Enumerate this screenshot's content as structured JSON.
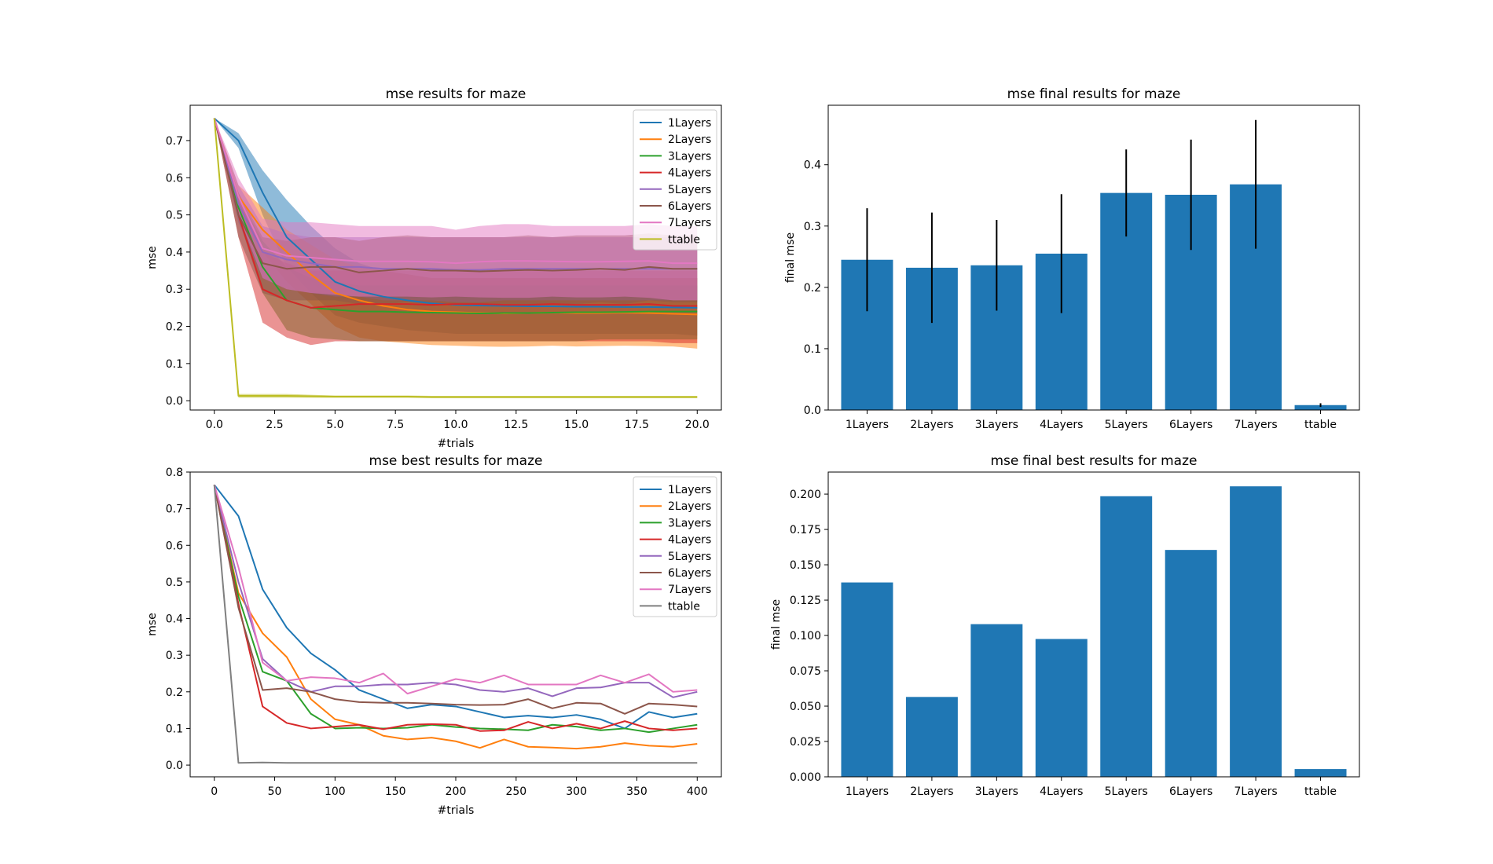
{
  "colors": {
    "1Layers": "#1f77b4",
    "2Layers": "#ff7f0e",
    "3Layers": "#2ca02c",
    "4Layers": "#d62728",
    "5Layers": "#9467bd",
    "6Layers": "#8c564b",
    "7Layers": "#e377c2",
    "ttable_top": "#bcbd22",
    "ttable_bottom": "#7f7f7f",
    "bar": "#1f77b4",
    "errorbar": "#000000"
  },
  "chart_data": [
    {
      "id": "top_left",
      "type": "line",
      "title": "mse results for maze",
      "xlabel": "#trials",
      "ylabel": "mse",
      "xlim": [
        -1.0,
        21.0
      ],
      "ylim": [
        -0.025,
        0.795
      ],
      "xticks": [
        0.0,
        2.5,
        5.0,
        7.5,
        10.0,
        12.5,
        15.0,
        17.5,
        20.0
      ],
      "xtick_labels": [
        "0.0",
        "2.5",
        "5.0",
        "7.5",
        "10.0",
        "12.5",
        "15.0",
        "17.5",
        "20.0"
      ],
      "yticks": [
        0.0,
        0.1,
        0.2,
        0.3,
        0.4,
        0.5,
        0.6,
        0.7
      ],
      "ytick_labels": [
        "0.0",
        "0.1",
        "0.2",
        "0.3",
        "0.4",
        "0.5",
        "0.6",
        "0.7"
      ],
      "legend_position": "top-right",
      "band_opacity": 0.5,
      "x": [
        0,
        1,
        2,
        3,
        4,
        5,
        6,
        7,
        8,
        9,
        10,
        11,
        12,
        13,
        14,
        15,
        16,
        17,
        18,
        19,
        20
      ],
      "series": [
        {
          "name": "1Layers",
          "color_key": "1Layers",
          "values": [
            0.76,
            0.7,
            0.56,
            0.44,
            0.38,
            0.32,
            0.295,
            0.28,
            0.27,
            0.262,
            0.258,
            0.256,
            0.255,
            0.254,
            0.254,
            0.253,
            0.253,
            0.252,
            0.252,
            0.251,
            0.25
          ],
          "upper": [
            0.76,
            0.72,
            0.62,
            0.54,
            0.47,
            0.41,
            0.37,
            0.35,
            0.34,
            0.33,
            0.33,
            0.33,
            0.33,
            0.33,
            0.33,
            0.33,
            0.33,
            0.33,
            0.33,
            0.33,
            0.33
          ],
          "lower": [
            0.76,
            0.68,
            0.5,
            0.36,
            0.29,
            0.23,
            0.21,
            0.2,
            0.19,
            0.185,
            0.18,
            0.18,
            0.18,
            0.18,
            0.18,
            0.18,
            0.18,
            0.18,
            0.18,
            0.18,
            0.175
          ]
        },
        {
          "name": "2Layers",
          "color_key": "2Layers",
          "values": [
            0.76,
            0.55,
            0.46,
            0.4,
            0.34,
            0.29,
            0.27,
            0.255,
            0.245,
            0.24,
            0.238,
            0.236,
            0.235,
            0.236,
            0.237,
            0.236,
            0.236,
            0.237,
            0.236,
            0.234,
            0.232
          ],
          "upper": [
            0.76,
            0.58,
            0.52,
            0.46,
            0.42,
            0.38,
            0.36,
            0.35,
            0.34,
            0.33,
            0.33,
            0.33,
            0.33,
            0.33,
            0.33,
            0.33,
            0.33,
            0.33,
            0.33,
            0.33,
            0.33
          ],
          "lower": [
            0.76,
            0.52,
            0.4,
            0.32,
            0.26,
            0.2,
            0.17,
            0.16,
            0.155,
            0.15,
            0.148,
            0.146,
            0.145,
            0.146,
            0.148,
            0.146,
            0.147,
            0.148,
            0.147,
            0.146,
            0.14
          ]
        },
        {
          "name": "3Layers",
          "color_key": "3Layers",
          "values": [
            0.76,
            0.52,
            0.36,
            0.27,
            0.25,
            0.245,
            0.24,
            0.24,
            0.238,
            0.237,
            0.236,
            0.235,
            0.236,
            0.236,
            0.237,
            0.238,
            0.238,
            0.239,
            0.24,
            0.24,
            0.24
          ],
          "upper": [
            0.76,
            0.55,
            0.43,
            0.36,
            0.33,
            0.32,
            0.31,
            0.31,
            0.31,
            0.31,
            0.31,
            0.31,
            0.31,
            0.31,
            0.31,
            0.31,
            0.31,
            0.31,
            0.31,
            0.31,
            0.31
          ],
          "lower": [
            0.76,
            0.49,
            0.29,
            0.19,
            0.17,
            0.165,
            0.16,
            0.16,
            0.16,
            0.16,
            0.16,
            0.16,
            0.16,
            0.16,
            0.16,
            0.16,
            0.165,
            0.165,
            0.165,
            0.165,
            0.165
          ]
        },
        {
          "name": "4Layers",
          "color_key": "4Layers",
          "values": [
            0.76,
            0.5,
            0.3,
            0.27,
            0.25,
            0.255,
            0.26,
            0.26,
            0.26,
            0.258,
            0.26,
            0.26,
            0.258,
            0.258,
            0.26,
            0.258,
            0.258,
            0.258,
            0.26,
            0.255,
            0.255
          ],
          "upper": [
            0.76,
            0.56,
            0.4,
            0.37,
            0.35,
            0.35,
            0.35,
            0.35,
            0.35,
            0.35,
            0.35,
            0.35,
            0.35,
            0.35,
            0.35,
            0.35,
            0.35,
            0.35,
            0.35,
            0.35,
            0.35
          ],
          "lower": [
            0.76,
            0.44,
            0.21,
            0.17,
            0.15,
            0.16,
            0.16,
            0.16,
            0.16,
            0.16,
            0.16,
            0.16,
            0.16,
            0.16,
            0.16,
            0.16,
            0.16,
            0.16,
            0.16,
            0.155,
            0.155
          ]
        },
        {
          "name": "5Layers",
          "color_key": "5Layers",
          "values": [
            0.76,
            0.53,
            0.4,
            0.38,
            0.37,
            0.36,
            0.36,
            0.355,
            0.355,
            0.355,
            0.352,
            0.352,
            0.355,
            0.355,
            0.355,
            0.355,
            0.355,
            0.355,
            0.355,
            0.355,
            0.355
          ],
          "upper": [
            0.76,
            0.58,
            0.47,
            0.45,
            0.44,
            0.44,
            0.44,
            0.44,
            0.44,
            0.44,
            0.44,
            0.44,
            0.44,
            0.44,
            0.44,
            0.44,
            0.44,
            0.44,
            0.44,
            0.44,
            0.44
          ],
          "lower": [
            0.76,
            0.48,
            0.33,
            0.3,
            0.29,
            0.28,
            0.28,
            0.27,
            0.27,
            0.27,
            0.265,
            0.265,
            0.27,
            0.27,
            0.27,
            0.27,
            0.27,
            0.27,
            0.27,
            0.27,
            0.27
          ]
        },
        {
          "name": "6Layers",
          "color_key": "6Layers",
          "values": [
            0.76,
            0.5,
            0.37,
            0.355,
            0.36,
            0.36,
            0.345,
            0.35,
            0.355,
            0.35,
            0.35,
            0.348,
            0.35,
            0.352,
            0.35,
            0.352,
            0.355,
            0.352,
            0.36,
            0.355,
            0.355
          ],
          "upper": [
            0.76,
            0.56,
            0.44,
            0.43,
            0.44,
            0.44,
            0.43,
            0.44,
            0.445,
            0.44,
            0.44,
            0.44,
            0.44,
            0.445,
            0.44,
            0.445,
            0.445,
            0.445,
            0.45,
            0.445,
            0.445
          ],
          "lower": [
            0.76,
            0.44,
            0.29,
            0.27,
            0.27,
            0.27,
            0.26,
            0.26,
            0.265,
            0.26,
            0.26,
            0.255,
            0.26,
            0.26,
            0.26,
            0.26,
            0.265,
            0.26,
            0.27,
            0.265,
            0.265
          ]
        },
        {
          "name": "7Layers",
          "color_key": "7Layers",
          "values": [
            0.76,
            0.55,
            0.41,
            0.39,
            0.385,
            0.38,
            0.375,
            0.375,
            0.375,
            0.374,
            0.37,
            0.374,
            0.376,
            0.376,
            0.375,
            0.374,
            0.374,
            0.375,
            0.376,
            0.37,
            0.37
          ],
          "upper": [
            0.76,
            0.6,
            0.49,
            0.48,
            0.48,
            0.475,
            0.47,
            0.47,
            0.47,
            0.47,
            0.46,
            0.47,
            0.475,
            0.475,
            0.47,
            0.47,
            0.47,
            0.47,
            0.475,
            0.47,
            0.47
          ],
          "lower": [
            0.76,
            0.5,
            0.33,
            0.3,
            0.29,
            0.285,
            0.28,
            0.28,
            0.28,
            0.278,
            0.28,
            0.278,
            0.277,
            0.277,
            0.28,
            0.278,
            0.278,
            0.28,
            0.277,
            0.27,
            0.27
          ]
        },
        {
          "name": "ttable",
          "color_key": "ttable_top",
          "values": [
            0.76,
            0.013,
            0.013,
            0.013,
            0.012,
            0.011,
            0.011,
            0.011,
            0.011,
            0.01,
            0.01,
            0.01,
            0.01,
            0.01,
            0.01,
            0.01,
            0.01,
            0.01,
            0.01,
            0.01,
            0.01
          ],
          "upper": [
            0.76,
            0.018,
            0.018,
            0.018,
            0.016,
            0.014,
            0.014,
            0.014,
            0.014,
            0.013,
            0.013,
            0.013,
            0.013,
            0.013,
            0.013,
            0.013,
            0.013,
            0.013,
            0.013,
            0.013,
            0.013
          ],
          "lower": [
            0.76,
            0.008,
            0.008,
            0.008,
            0.008,
            0.008,
            0.008,
            0.008,
            0.008,
            0.007,
            0.007,
            0.007,
            0.007,
            0.007,
            0.007,
            0.007,
            0.007,
            0.007,
            0.007,
            0.007,
            0.007
          ]
        }
      ]
    },
    {
      "id": "top_right",
      "type": "bar",
      "title": "mse final results for maze",
      "xlabel": "",
      "ylabel": "final mse",
      "ylim": [
        0,
        0.497
      ],
      "yticks": [
        0.0,
        0.1,
        0.2,
        0.3,
        0.4
      ],
      "ytick_labels": [
        "0.0",
        "0.1",
        "0.2",
        "0.3",
        "0.4"
      ],
      "categories": [
        "1Layers",
        "2Layers",
        "3Layers",
        "4Layers",
        "5Layers",
        "6Layers",
        "7Layers",
        "ttable"
      ],
      "values": [
        0.245,
        0.232,
        0.236,
        0.255,
        0.354,
        0.351,
        0.368,
        0.008
      ],
      "errors": [
        0.084,
        0.09,
        0.074,
        0.097,
        0.071,
        0.09,
        0.105,
        0.003
      ]
    },
    {
      "id": "bottom_left",
      "type": "line",
      "title": "mse best results for maze",
      "xlabel": "#trials",
      "ylabel": "mse",
      "xlim": [
        -20,
        420
      ],
      "ylim": [
        -0.032,
        0.8
      ],
      "xticks": [
        0,
        50,
        100,
        150,
        200,
        250,
        300,
        350,
        400
      ],
      "xtick_labels": [
        "0",
        "50",
        "100",
        "150",
        "200",
        "250",
        "300",
        "350",
        "400"
      ],
      "yticks": [
        0.0,
        0.1,
        0.2,
        0.3,
        0.4,
        0.5,
        0.6,
        0.7,
        0.8
      ],
      "ytick_labels": [
        "0.0",
        "0.1",
        "0.2",
        "0.3",
        "0.4",
        "0.5",
        "0.6",
        "0.7",
        "0.8"
      ],
      "legend_position": "top-right",
      "x": [
        0,
        20,
        40,
        60,
        80,
        100,
        120,
        140,
        160,
        180,
        200,
        220,
        240,
        260,
        280,
        300,
        320,
        340,
        360,
        380,
        400
      ],
      "series": [
        {
          "name": "1Layers",
          "color_key": "1Layers",
          "values": [
            0.765,
            0.68,
            0.48,
            0.375,
            0.305,
            0.26,
            0.205,
            0.18,
            0.155,
            0.165,
            0.16,
            0.145,
            0.13,
            0.135,
            0.13,
            0.137,
            0.125,
            0.1,
            0.145,
            0.13,
            0.14
          ]
        },
        {
          "name": "2Layers",
          "color_key": "2Layers",
          "values": [
            0.765,
            0.47,
            0.36,
            0.295,
            0.18,
            0.125,
            0.11,
            0.08,
            0.07,
            0.075,
            0.065,
            0.047,
            0.07,
            0.05,
            0.048,
            0.045,
            0.05,
            0.06,
            0.053,
            0.05,
            0.058
          ]
        },
        {
          "name": "3Layers",
          "color_key": "3Layers",
          "values": [
            0.765,
            0.46,
            0.255,
            0.23,
            0.14,
            0.1,
            0.102,
            0.1,
            0.102,
            0.11,
            0.104,
            0.1,
            0.098,
            0.095,
            0.11,
            0.105,
            0.095,
            0.1,
            0.09,
            0.1,
            0.11
          ]
        },
        {
          "name": "4Layers",
          "color_key": "4Layers",
          "values": [
            0.765,
            0.44,
            0.16,
            0.115,
            0.1,
            0.105,
            0.11,
            0.098,
            0.11,
            0.112,
            0.11,
            0.093,
            0.095,
            0.118,
            0.1,
            0.113,
            0.1,
            0.12,
            0.1,
            0.095,
            0.1
          ]
        },
        {
          "name": "5Layers",
          "color_key": "5Layers",
          "values": [
            0.765,
            0.5,
            0.29,
            0.23,
            0.2,
            0.215,
            0.215,
            0.22,
            0.22,
            0.225,
            0.22,
            0.205,
            0.2,
            0.21,
            0.188,
            0.21,
            0.212,
            0.225,
            0.225,
            0.185,
            0.2
          ]
        },
        {
          "name": "6Layers",
          "color_key": "6Layers",
          "values": [
            0.765,
            0.43,
            0.205,
            0.21,
            0.2,
            0.18,
            0.172,
            0.17,
            0.17,
            0.168,
            0.165,
            0.164,
            0.165,
            0.18,
            0.155,
            0.17,
            0.168,
            0.14,
            0.168,
            0.165,
            0.16
          ]
        },
        {
          "name": "7Layers",
          "color_key": "7Layers",
          "values": [
            0.765,
            0.54,
            0.28,
            0.23,
            0.24,
            0.237,
            0.225,
            0.25,
            0.195,
            0.215,
            0.235,
            0.225,
            0.245,
            0.22,
            0.22,
            0.22,
            0.245,
            0.225,
            0.248,
            0.2,
            0.205
          ]
        },
        {
          "name": "ttable",
          "color_key": "ttable_bottom",
          "values": [
            0.765,
            0.006,
            0.007,
            0.006,
            0.006,
            0.006,
            0.006,
            0.006,
            0.006,
            0.006,
            0.006,
            0.006,
            0.006,
            0.006,
            0.006,
            0.006,
            0.006,
            0.006,
            0.006,
            0.006,
            0.006
          ]
        }
      ]
    },
    {
      "id": "bottom_right",
      "type": "bar",
      "title": "mse final best results for maze",
      "xlabel": "",
      "ylabel": "final mse",
      "ylim": [
        0,
        0.2156
      ],
      "yticks": [
        0.0,
        0.025,
        0.05,
        0.075,
        0.1,
        0.125,
        0.15,
        0.175,
        0.2
      ],
      "ytick_labels": [
        "0.000",
        "0.025",
        "0.050",
        "0.075",
        "0.100",
        "0.125",
        "0.150",
        "0.175",
        "0.200"
      ],
      "categories": [
        "1Layers",
        "2Layers",
        "3Layers",
        "4Layers",
        "5Layers",
        "6Layers",
        "7Layers",
        "ttable"
      ],
      "values": [
        0.1375,
        0.0565,
        0.108,
        0.0975,
        0.1985,
        0.1605,
        0.2055,
        0.0055
      ]
    }
  ]
}
